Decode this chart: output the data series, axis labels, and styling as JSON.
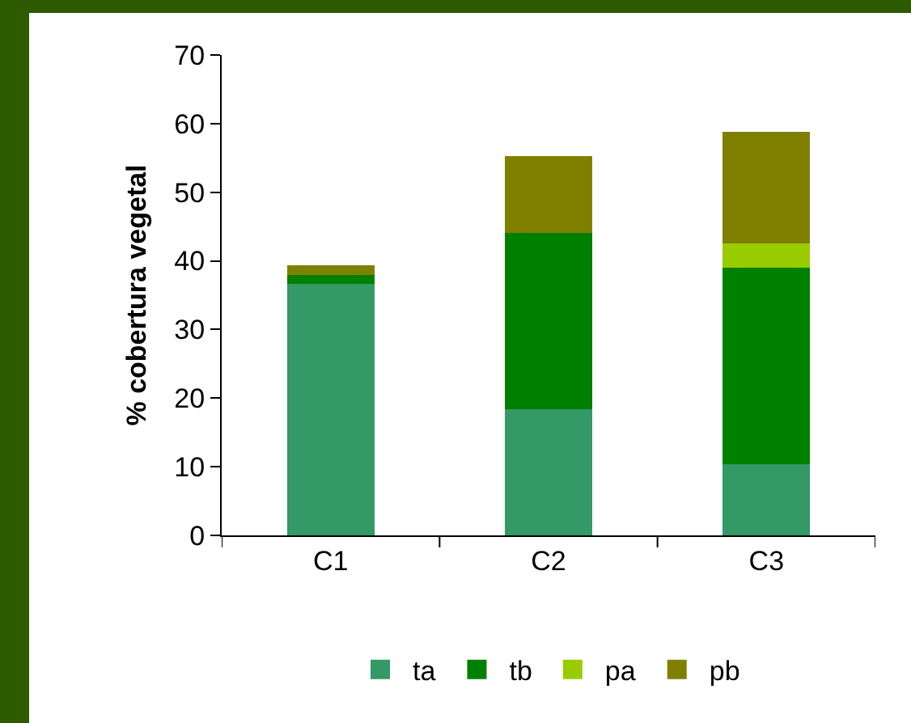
{
  "chart_data": {
    "type": "bar",
    "stacked": true,
    "ylabel": "% cobertura vegetal",
    "categories": [
      "C1",
      "C2",
      "C3"
    ],
    "series": [
      {
        "name": "ta",
        "color": "#339966",
        "values": [
          36.6,
          18.4,
          10.4
        ]
      },
      {
        "name": "tb",
        "color": "#008000",
        "values": [
          1.4,
          25.7,
          28.6
        ]
      },
      {
        "name": "pa",
        "color": "#99cc00",
        "values": [
          0,
          0,
          3.5
        ]
      },
      {
        "name": "pb",
        "color": "#808000",
        "values": [
          1.4,
          11.2,
          16.3
        ]
      }
    ],
    "ylim": [
      0,
      70
    ],
    "yticks": [
      0,
      10,
      20,
      30,
      40,
      50,
      60,
      70
    ],
    "grid": false,
    "legend": "bottom"
  }
}
